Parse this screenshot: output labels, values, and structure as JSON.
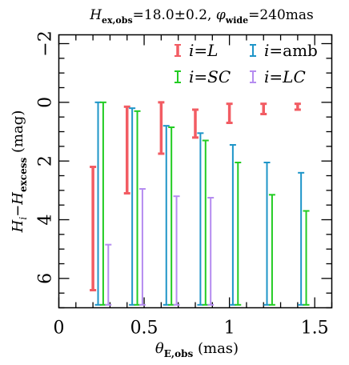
{
  "chart_data": {
    "type": "bar",
    "title": {
      "h_label": "H",
      "h_sub": "ex,obs",
      "h_value": "=18.0±0.2, ",
      "phi_label": "φ",
      "phi_sub": "wide",
      "phi_value": "=240mas"
    },
    "xlabel": {
      "main": "θ",
      "sub": "E,obs",
      "unit": " (mas)"
    },
    "ylabel": {
      "h": "H",
      "i": "i",
      "dash": "−",
      "h2": "H",
      "sub": "excess",
      "unit": " (mag)"
    },
    "xlim": [
      0,
      1.6
    ],
    "ylim": [
      7,
      -2.3
    ],
    "x_ticks": [
      0,
      0.5,
      1,
      1.5
    ],
    "x_tick_labels": [
      "0",
      "0.5",
      "1",
      "1.5"
    ],
    "y_ticks": [
      -2,
      0,
      2,
      4,
      6
    ],
    "y_tick_labels": [
      "−2",
      "0",
      "2",
      "4",
      "6"
    ],
    "legend_position": "top",
    "legend": [
      {
        "key": "L",
        "prefix": "i=",
        "name": "L",
        "color": "#f25c63"
      },
      {
        "key": "amb",
        "prefix": "i=",
        "name": "amb",
        "color": "#1e95c8"
      },
      {
        "key": "SC",
        "prefix": "i=",
        "name": "SC",
        "color": "#22cc22"
      },
      {
        "key": "LC",
        "prefix": "i=",
        "name": "LC",
        "color": "#b58cf0"
      }
    ],
    "series": [
      {
        "key": "L",
        "points": [
          {
            "x": 0.2,
            "ymin": 2.2,
            "ymax": 6.4
          },
          {
            "x": 0.4,
            "ymin": 0.15,
            "ymax": 3.1
          },
          {
            "x": 0.6,
            "ymin": 0.0,
            "ymax": 1.75
          },
          {
            "x": 0.8,
            "ymin": 0.25,
            "ymax": 1.2
          },
          {
            "x": 1.0,
            "ymin": 0.05,
            "ymax": 0.7
          },
          {
            "x": 1.2,
            "ymin": 0.05,
            "ymax": 0.4
          },
          {
            "x": 1.4,
            "ymin": 0.05,
            "ymax": 0.25
          }
        ]
      },
      {
        "key": "amb",
        "points": [
          {
            "x": 0.23,
            "ymin": 0.0,
            "ymax": 6.9
          },
          {
            "x": 0.43,
            "ymin": 0.2,
            "ymax": 6.9
          },
          {
            "x": 0.63,
            "ymin": 0.8,
            "ymax": 6.9
          },
          {
            "x": 0.83,
            "ymin": 1.05,
            "ymax": 6.9
          },
          {
            "x": 1.02,
            "ymin": 1.45,
            "ymax": 6.9
          },
          {
            "x": 1.22,
            "ymin": 2.05,
            "ymax": 6.9
          },
          {
            "x": 1.42,
            "ymin": 2.4,
            "ymax": 6.9
          }
        ]
      },
      {
        "key": "SC",
        "points": [
          {
            "x": 0.26,
            "ymin": 0.0,
            "ymax": 6.9
          },
          {
            "x": 0.46,
            "ymin": 0.3,
            "ymax": 6.9
          },
          {
            "x": 0.66,
            "ymin": 0.85,
            "ymax": 6.9
          },
          {
            "x": 0.86,
            "ymin": 1.3,
            "ymax": 6.9
          },
          {
            "x": 1.05,
            "ymin": 2.05,
            "ymax": 6.9
          },
          {
            "x": 1.25,
            "ymin": 3.15,
            "ymax": 6.9
          },
          {
            "x": 1.45,
            "ymin": 3.7,
            "ymax": 6.9
          }
        ]
      },
      {
        "key": "LC",
        "points": [
          {
            "x": 0.29,
            "ymin": 4.85,
            "ymax": 6.9
          },
          {
            "x": 0.49,
            "ymin": 2.95,
            "ymax": 6.9
          },
          {
            "x": 0.69,
            "ymin": 3.2,
            "ymax": 6.9
          },
          {
            "x": 0.89,
            "ymin": 3.25,
            "ymax": 6.9
          }
        ]
      }
    ]
  }
}
